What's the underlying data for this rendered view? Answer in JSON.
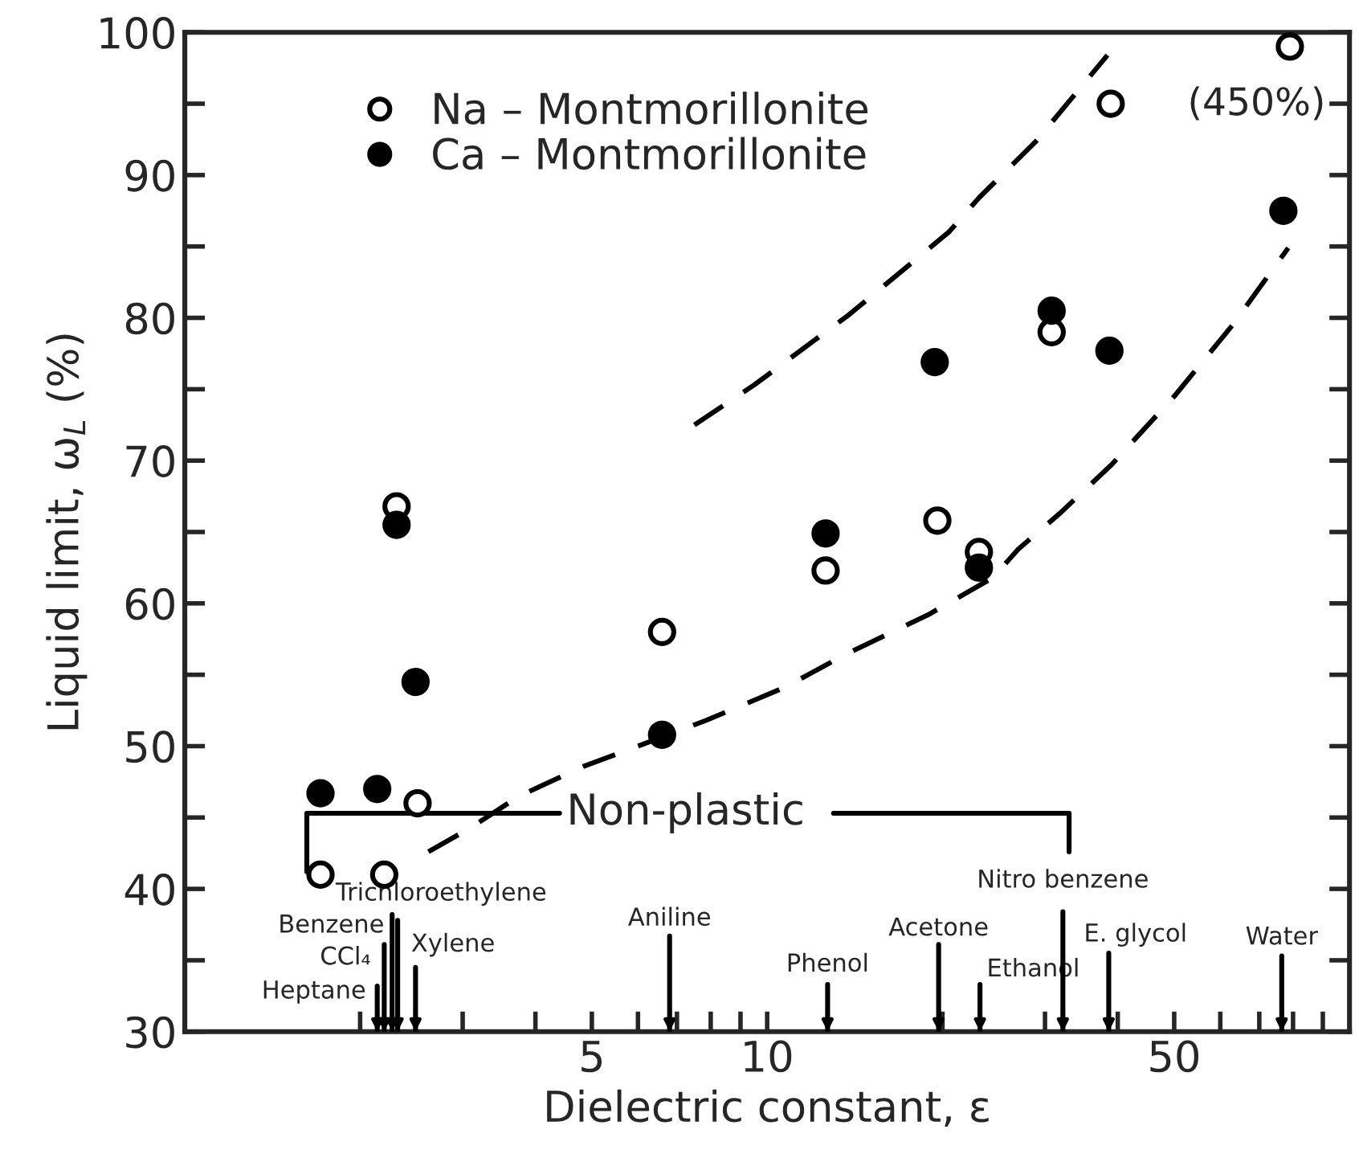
{
  "chart_data": {
    "type": "scatter",
    "xlabel": "Dielectric constant, ε",
    "ylabel": "Liquid limit, ω$_{L}$ (%)",
    "log": "x",
    "xlim": [
      1,
      100
    ],
    "xticks": [
      {
        "value": 2,
        "label": null
      },
      {
        "value": 3,
        "label": null
      },
      {
        "value": 4,
        "label": null
      },
      5,
      {
        "value": 6,
        "label": null
      },
      {
        "value": 7,
        "label": null
      },
      {
        "value": 8,
        "label": null
      },
      {
        "value": 9,
        "label": null
      },
      10,
      {
        "value": 20,
        "label": null
      },
      {
        "value": 30,
        "label": null
      },
      {
        "value": 40,
        "label": null
      },
      50,
      {
        "value": 60,
        "label": null
      },
      {
        "value": 70,
        "label": null
      },
      {
        "value": 80,
        "label": null
      },
      {
        "value": 90,
        "label": null
      }
    ],
    "ylim": [
      30,
      100
    ],
    "yticks": [
      30,
      {
        "value": 35,
        "label": null
      },
      40,
      {
        "value": 45,
        "label": null
      },
      50,
      {
        "value": 55,
        "label": null
      },
      60,
      {
        "value": 65,
        "label": null
      },
      70,
      {
        "value": 75,
        "label": null
      },
      80,
      {
        "value": 85,
        "label": null
      },
      90,
      {
        "value": 95,
        "label": null
      },
      100
    ],
    "legend": "top left",
    "series": [
      {
        "name": "Na – Montmorillonite",
        "color": "#ffffff",
        "marker": "circle",
        "x": [
          1.71,
          2.2,
          2.31,
          2.51,
          6.6,
          12.6,
          19.6,
          23.1,
          30.8,
          38.9,
          79
        ],
        "values": [
          41,
          41,
          66.8,
          46,
          58,
          62.3,
          65.8,
          63.6,
          79,
          95,
          99
        ]
      },
      {
        "name": "Ca – Montmorillonite",
        "color": "#000000",
        "marker": "circle",
        "x": [
          1.71,
          2.14,
          2.31,
          2.49,
          6.6,
          12.6,
          19.4,
          23.1,
          30.8,
          38.7,
          77
        ],
        "values": [
          46.7,
          47,
          65.5,
          54.5,
          50.8,
          64.9,
          76.9,
          62.5,
          80.5,
          77.7,
          87.5
        ]
      },
      {
        "type": "line",
        "line_style": "dashed",
        "color": "#000000",
        "x": [
          7.5,
          9.5,
          13.8,
          20.5,
          23.1,
          29,
          38.4
        ],
        "values": [
          72.5,
          75.3,
          80.2,
          86,
          88.4,
          92.4,
          98.4
        ]
      },
      {
        "type": "line",
        "line_style": "dashed",
        "color": "#000000",
        "x": [
          2.62,
          3.1,
          3.75,
          4.85,
          6,
          7.85,
          10.7,
          13.6,
          18.9,
          24.4,
          27,
          31.8,
          39,
          50,
          63,
          78.5
        ],
        "values": [
          42.6,
          44.3,
          46.5,
          48.6,
          50,
          51.8,
          54.1,
          56.4,
          59.2,
          61.8,
          63.8,
          66.3,
          69.7,
          74.5,
          79.5,
          84.9
        ]
      },
      {
        "type": "line",
        "line_style": "solid",
        "color": "#000000",
        "x": [
          1.62,
          1.62,
          4.4
        ],
        "values": [
          41.2,
          45.3,
          45.3
        ]
      },
      {
        "type": "line",
        "line_style": "solid",
        "color": "#000000",
        "x": [
          13,
          33,
          33
        ],
        "values": [
          45.3,
          45.3,
          42.6
        ]
      },
      {
        "type": "line",
        "name": "Heptane",
        "color": "#000000",
        "x": [
          2.14,
          2.14
        ],
        "values": [
          33.2,
          30
        ]
      },
      {
        "type": "line",
        "name": "CCl₄",
        "color": "#000000",
        "x": [
          2.2,
          2.2
        ],
        "values": [
          36.1,
          30
        ]
      },
      {
        "type": "line",
        "name": "Benzene",
        "color": "#000000",
        "x": [
          2.32,
          2.32
        ],
        "values": [
          37.8,
          30
        ]
      },
      {
        "type": "line",
        "name": "Trichloroethylene",
        "color": "#000000",
        "x": [
          2.27,
          2.27
        ],
        "values": [
          38.2,
          30
        ]
      },
      {
        "type": "line",
        "name": "Xylene",
        "color": "#000000",
        "x": [
          2.49,
          2.49
        ],
        "values": [
          34.5,
          30
        ]
      },
      {
        "type": "line",
        "name": "Aniline",
        "color": "#000000",
        "x": [
          6.8,
          6.8
        ],
        "values": [
          36.7,
          30
        ]
      },
      {
        "type": "line",
        "name": "Phenol",
        "color": "#000000",
        "x": [
          12.7,
          12.7
        ],
        "values": [
          33.3,
          30
        ]
      },
      {
        "type": "line",
        "name": "Acetone",
        "color": "#000000",
        "x": [
          19.7,
          19.7
        ],
        "values": [
          36.1,
          30
        ]
      },
      {
        "type": "line",
        "name": "Ethanol",
        "color": "#000000",
        "x": [
          23.2,
          23.2
        ],
        "values": [
          33.3,
          30
        ]
      },
      {
        "type": "line",
        "name": "Nitro benzene",
        "color": "#000000",
        "x": [
          32.2,
          32.2
        ],
        "values": [
          38.4,
          30
        ]
      },
      {
        "type": "line",
        "name": "E. glycol",
        "color": "#000000",
        "x": [
          38.6,
          38.6
        ],
        "values": [
          35.5,
          30
        ]
      },
      {
        "type": "line",
        "name": "Water",
        "color": "#000000",
        "x": [
          76.5,
          76.5
        ],
        "values": [
          35.3,
          30
        ]
      }
    ],
    "annotations": [
      "Non-plastic",
      {
        "text": "(450%)",
        "x": 79,
        "y": 99
      }
    ]
  }
}
